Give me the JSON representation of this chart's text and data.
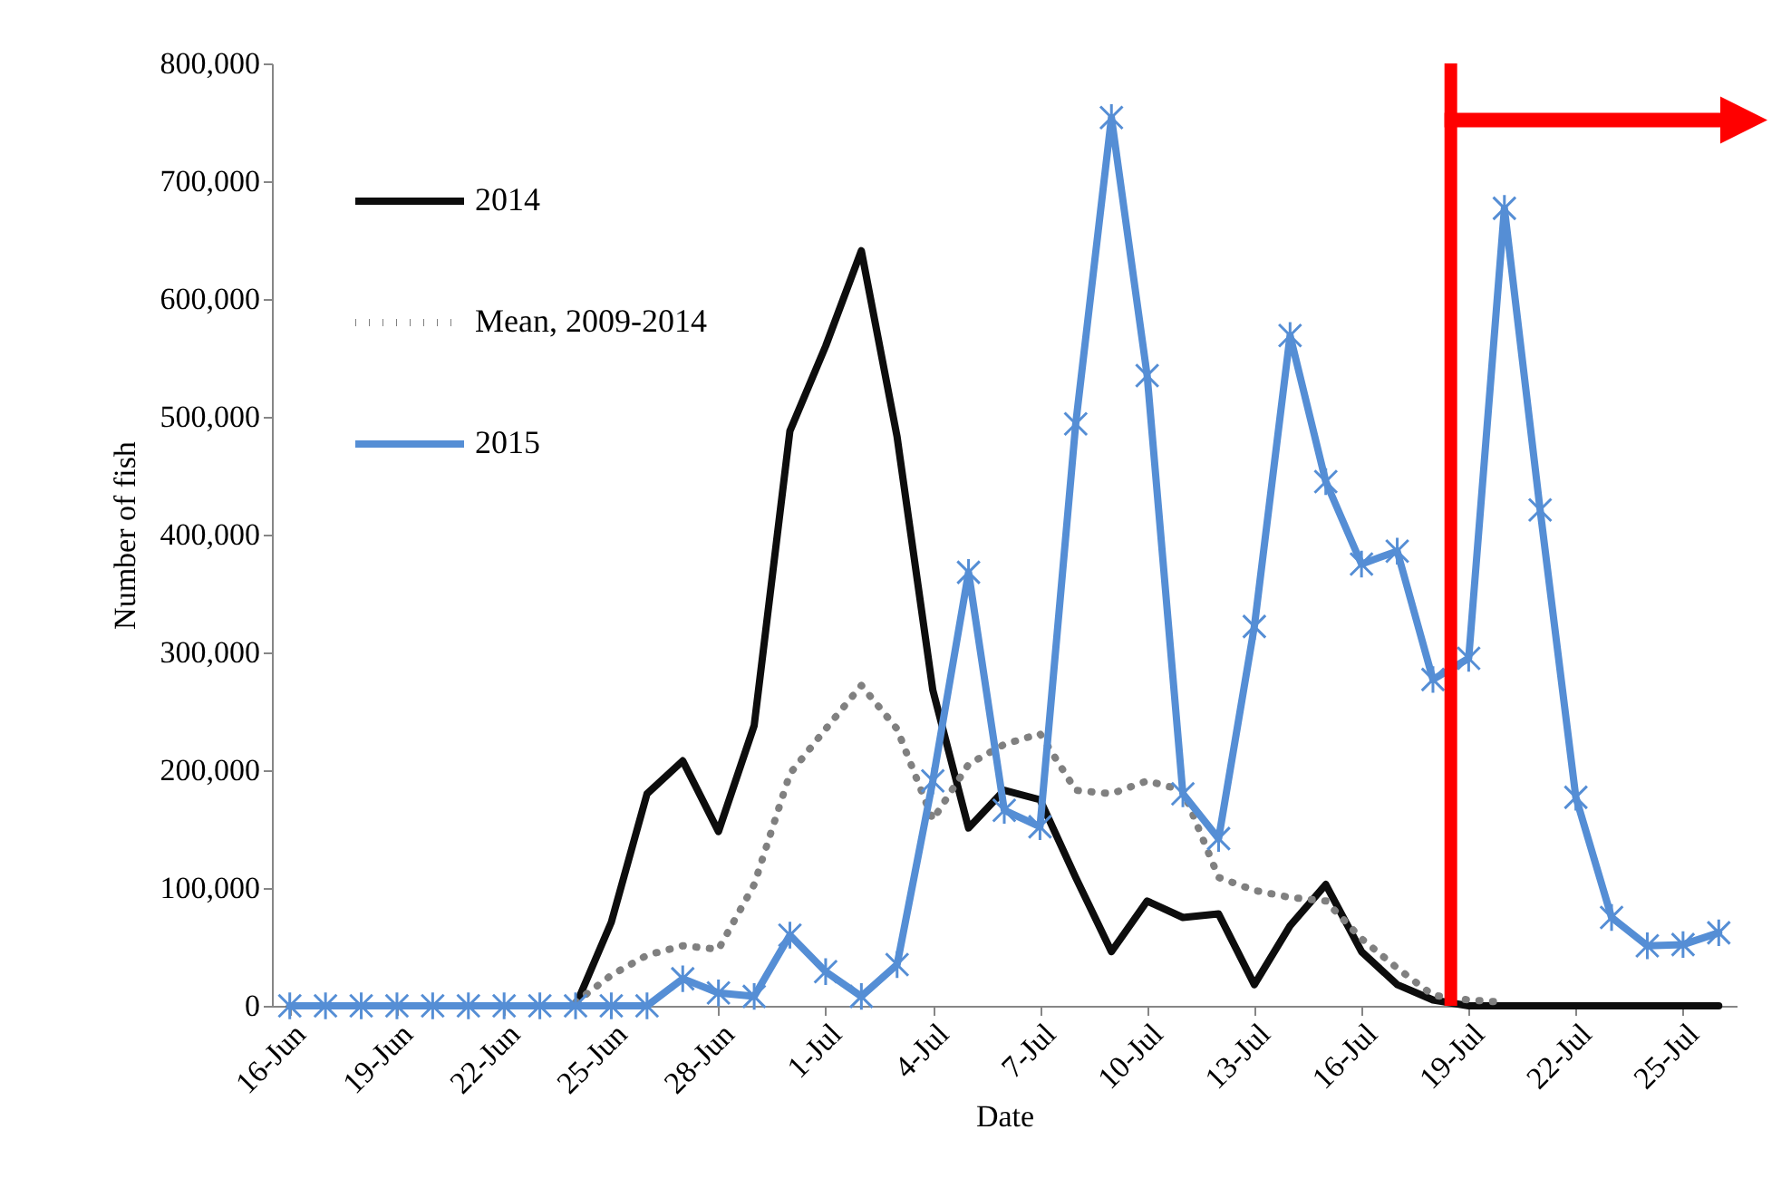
{
  "chart_data": {
    "type": "line",
    "xlabel": "Date",
    "ylabel": "Number of fish",
    "categories": [
      "16-Jun",
      null,
      null,
      "19-Jun",
      null,
      null,
      "22-Jun",
      null,
      null,
      "25-Jun",
      null,
      null,
      "28-Jun",
      null,
      null,
      "1-Jul",
      null,
      null,
      "4-Jul",
      null,
      null,
      "7-Jul",
      null,
      null,
      "10-Jul",
      null,
      null,
      "13-Jul",
      null,
      null,
      "16-Jul",
      null,
      null,
      "19-Jul",
      null,
      null,
      "22-Jul",
      null,
      null,
      "25-Jul",
      null
    ],
    "series": [
      {
        "name": "2014",
        "color": "#0d0d0d",
        "line_style": "solid",
        "marker": "none",
        "values": [
          0,
          0,
          0,
          0,
          0,
          0,
          0,
          0,
          0,
          71000,
          180000,
          208000,
          148000,
          238000,
          488000,
          560000,
          641000,
          483000,
          268000,
          151000,
          183000,
          175000,
          109000,
          46000,
          89000,
          75000,
          78000,
          18000,
          68000,
          103000,
          46000,
          18000,
          5000,
          0,
          0,
          0,
          0,
          0,
          0,
          0,
          0
        ]
      },
      {
        "name": "Mean, 2009-2014",
        "color": "#808080",
        "line_style": "dotted",
        "marker": "none",
        "values": [
          null,
          null,
          null,
          null,
          null,
          null,
          null,
          null,
          3000,
          26000,
          43000,
          51000,
          48000,
          103000,
          197000,
          235000,
          272000,
          235000,
          158000,
          205000,
          222000,
          231000,
          183000,
          180000,
          191000,
          183000,
          109000,
          98000,
          92000,
          89000,
          57000,
          32000,
          9000,
          5000,
          3000,
          null,
          null,
          null,
          null,
          null,
          null
        ]
      },
      {
        "name": "2015",
        "color": "#558ed5",
        "line_style": "solid",
        "marker": "cross",
        "values": [
          0,
          0,
          0,
          0,
          0,
          0,
          0,
          0,
          0,
          0,
          0,
          23000,
          11000,
          8000,
          60000,
          29000,
          8000,
          35000,
          191000,
          368000,
          166000,
          152000,
          494000,
          754000,
          535000,
          180000,
          142000,
          322000,
          569000,
          445000,
          375000,
          386000,
          277000,
          295000,
          677000,
          421000,
          177000,
          75000,
          51000,
          52000,
          62000
        ]
      }
    ],
    "ylim": [
      0,
      800000
    ],
    "yticks": [
      0,
      {
        "value": 100000,
        "label": "100,000"
      },
      {
        "value": 200000,
        "label": "200,000"
      },
      {
        "value": 300000,
        "label": "300,000"
      },
      {
        "value": 400000,
        "label": "400,000"
      },
      {
        "value": 500000,
        "label": "500,000"
      },
      {
        "value": 600000,
        "label": "600,000"
      },
      {
        "value": 700000,
        "label": "700,000"
      },
      {
        "value": 800000,
        "label": "800,000"
      }
    ],
    "grid": false,
    "legend": "top left",
    "ref_lines": [
      {
        "axis": "x",
        "value": "19-Jul",
        "color": "#ff0000"
      }
    ]
  }
}
